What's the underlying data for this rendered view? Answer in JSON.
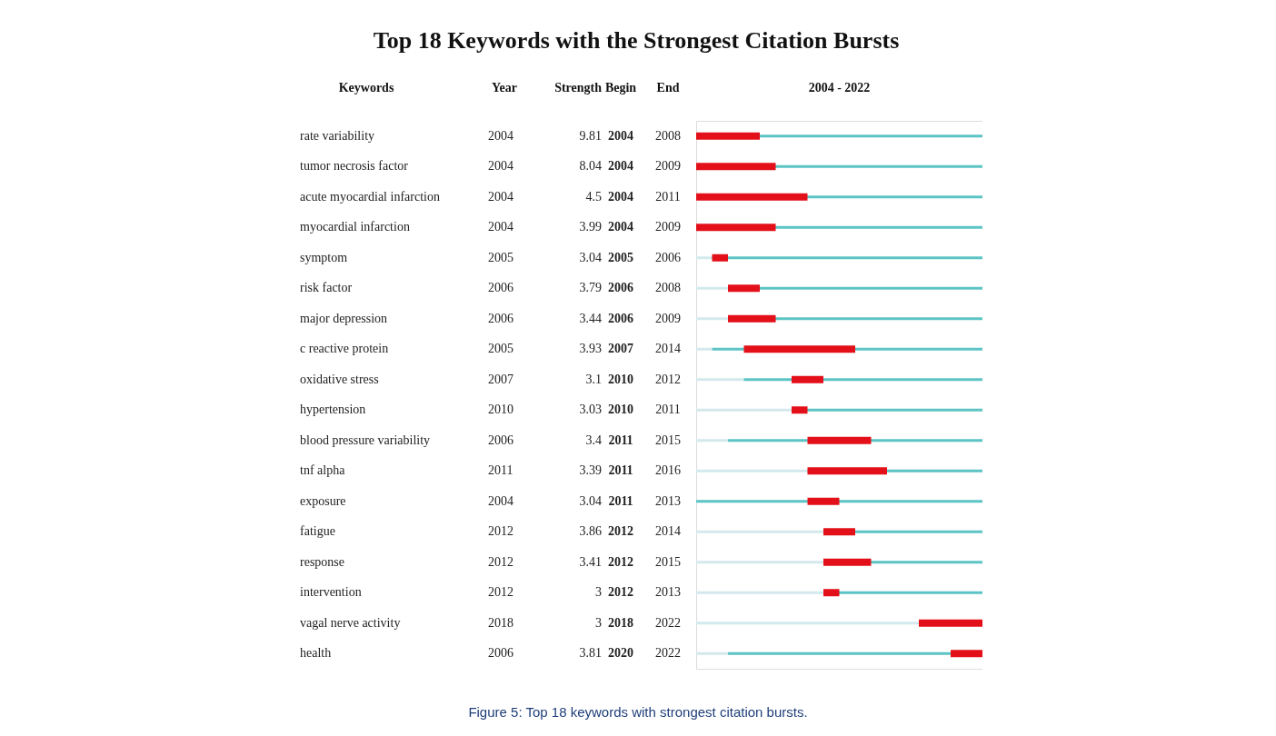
{
  "chart_data": {
    "type": "other",
    "title": "Top 18 Keywords with the Strongest Citation Bursts",
    "ylabel": "Keywords",
    "xlabel": "2004 - 2022",
    "data_labels": true,
    "categories": [
      "rate variability",
      "tumor necrosis factor",
      "acute myocardial infarction",
      "myocardial infarction",
      "symptom",
      "risk factor",
      "major depression",
      "c reactive protein",
      "oxidative stress",
      "hypertension",
      "blood pressure variability",
      "tnf alpha",
      "exposure",
      "fatigue",
      "response",
      "intervention",
      "vagal nerve activity",
      "health"
    ],
    "series": [
      {
        "name": "Year",
        "values": [
          2004,
          2004,
          2004,
          2004,
          2005,
          2006,
          2006,
          2005,
          2007,
          2010,
          2006,
          2011,
          2004,
          2012,
          2012,
          2012,
          2018,
          2006
        ]
      },
      {
        "name": "Strength",
        "values": [
          9.81,
          8.04,
          4.5,
          3.99,
          3.04,
          3.79,
          3.44,
          3.93,
          3.1,
          3.03,
          3.4,
          3.39,
          3.04,
          3.86,
          3.41,
          3,
          3,
          3.81
        ]
      },
      {
        "name": "Begin",
        "values": [
          2004,
          2004,
          2004,
          2004,
          2005,
          2006,
          2006,
          2007,
          2010,
          2010,
          2011,
          2011,
          2011,
          2012,
          2012,
          2012,
          2018,
          2020
        ]
      },
      {
        "name": "End",
        "values": [
          2008,
          2009,
          2011,
          2009,
          2006,
          2008,
          2009,
          2014,
          2012,
          2011,
          2015,
          2016,
          2013,
          2014,
          2015,
          2013,
          2022,
          2022
        ]
      }
    ],
    "annotations": [
      "Figure 5: Top 18 keywords with strongest citation bursts."
    ]
  }
}
